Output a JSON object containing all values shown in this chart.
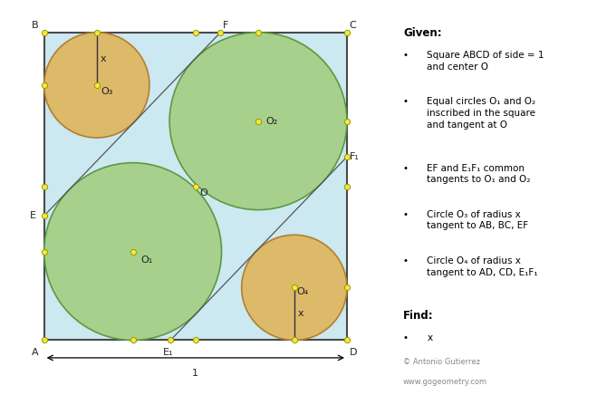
{
  "fig_width": 6.59,
  "fig_height": 4.47,
  "dpi": 100,
  "bg_outer": "#ffffff",
  "bg_square": "#cce8f0",
  "square_border": "#4a4a4a",
  "green_fill": "#a8d08d",
  "green_edge": "#5a9a40",
  "orange_fill": "#ddb96a",
  "orange_edge": "#b08030",
  "dot_fill": "#f5e642",
  "dot_edge": "#9a9a00",
  "line_color": "#555555",
  "label_color": "#222222",
  "copyright_color": "#888888",
  "textbox_fill": "#f0f0f0",
  "textbox_edge": "#bbbbbb",
  "given_title": "Given:",
  "given_bullets": [
    "Square ABCD of side = 1\nand center O",
    "Equal circles O₁ and O₂\ninscribed in the square\nand tangent at O",
    "EF and E₁F₁ common\ntangents to O₁ and O₂",
    "Circle O₃ of radius x\ntangent to AB, BC, EF",
    "Circle O₄ of radius x\ntangent to AD, CD, E₁F₁"
  ],
  "find_title": "Find:",
  "find_bullet": "x",
  "copyright_line1": "© Antonio Gutierrez",
  "copyright_line2": "www.gogeometry.com"
}
